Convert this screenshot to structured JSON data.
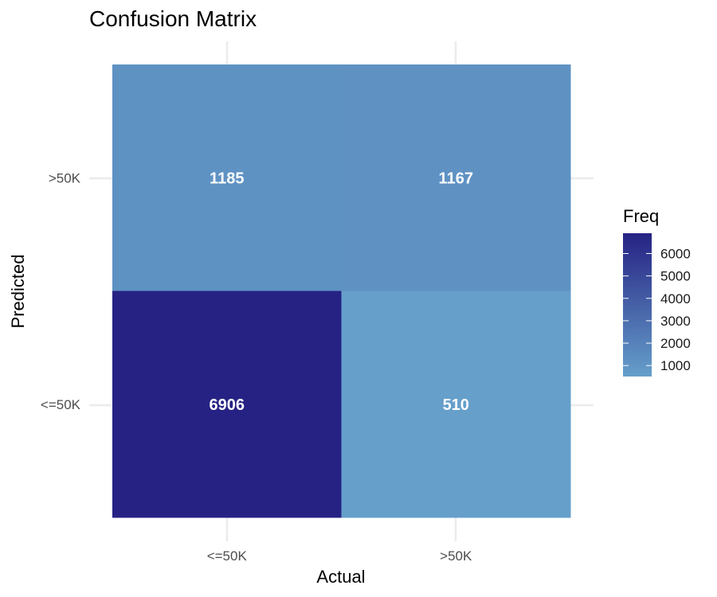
{
  "chart_data": {
    "type": "heatmap",
    "title": "Confusion Matrix",
    "xlabel": "Actual",
    "ylabel": "Predicted",
    "x_categories": [
      "<=50K",
      ">50K"
    ],
    "y_categories": [
      "<=50K",
      ">50K"
    ],
    "cells": [
      {
        "actual": "<=50K",
        "predicted": ">50K",
        "value": 1185
      },
      {
        "actual": ">50K",
        "predicted": ">50K",
        "value": 1167
      },
      {
        "actual": "<=50K",
        "predicted": "<=50K",
        "value": 6906
      },
      {
        "actual": ">50K",
        "predicted": "<=50K",
        "value": 510
      }
    ],
    "legend": {
      "title": "Freq",
      "ticks": [
        6000,
        5000,
        4000,
        3000,
        2000,
        1000
      ],
      "range": [
        510,
        6906
      ],
      "low_color": "#659fca",
      "high_color": "#262284",
      "position": "right"
    },
    "grid": true
  }
}
